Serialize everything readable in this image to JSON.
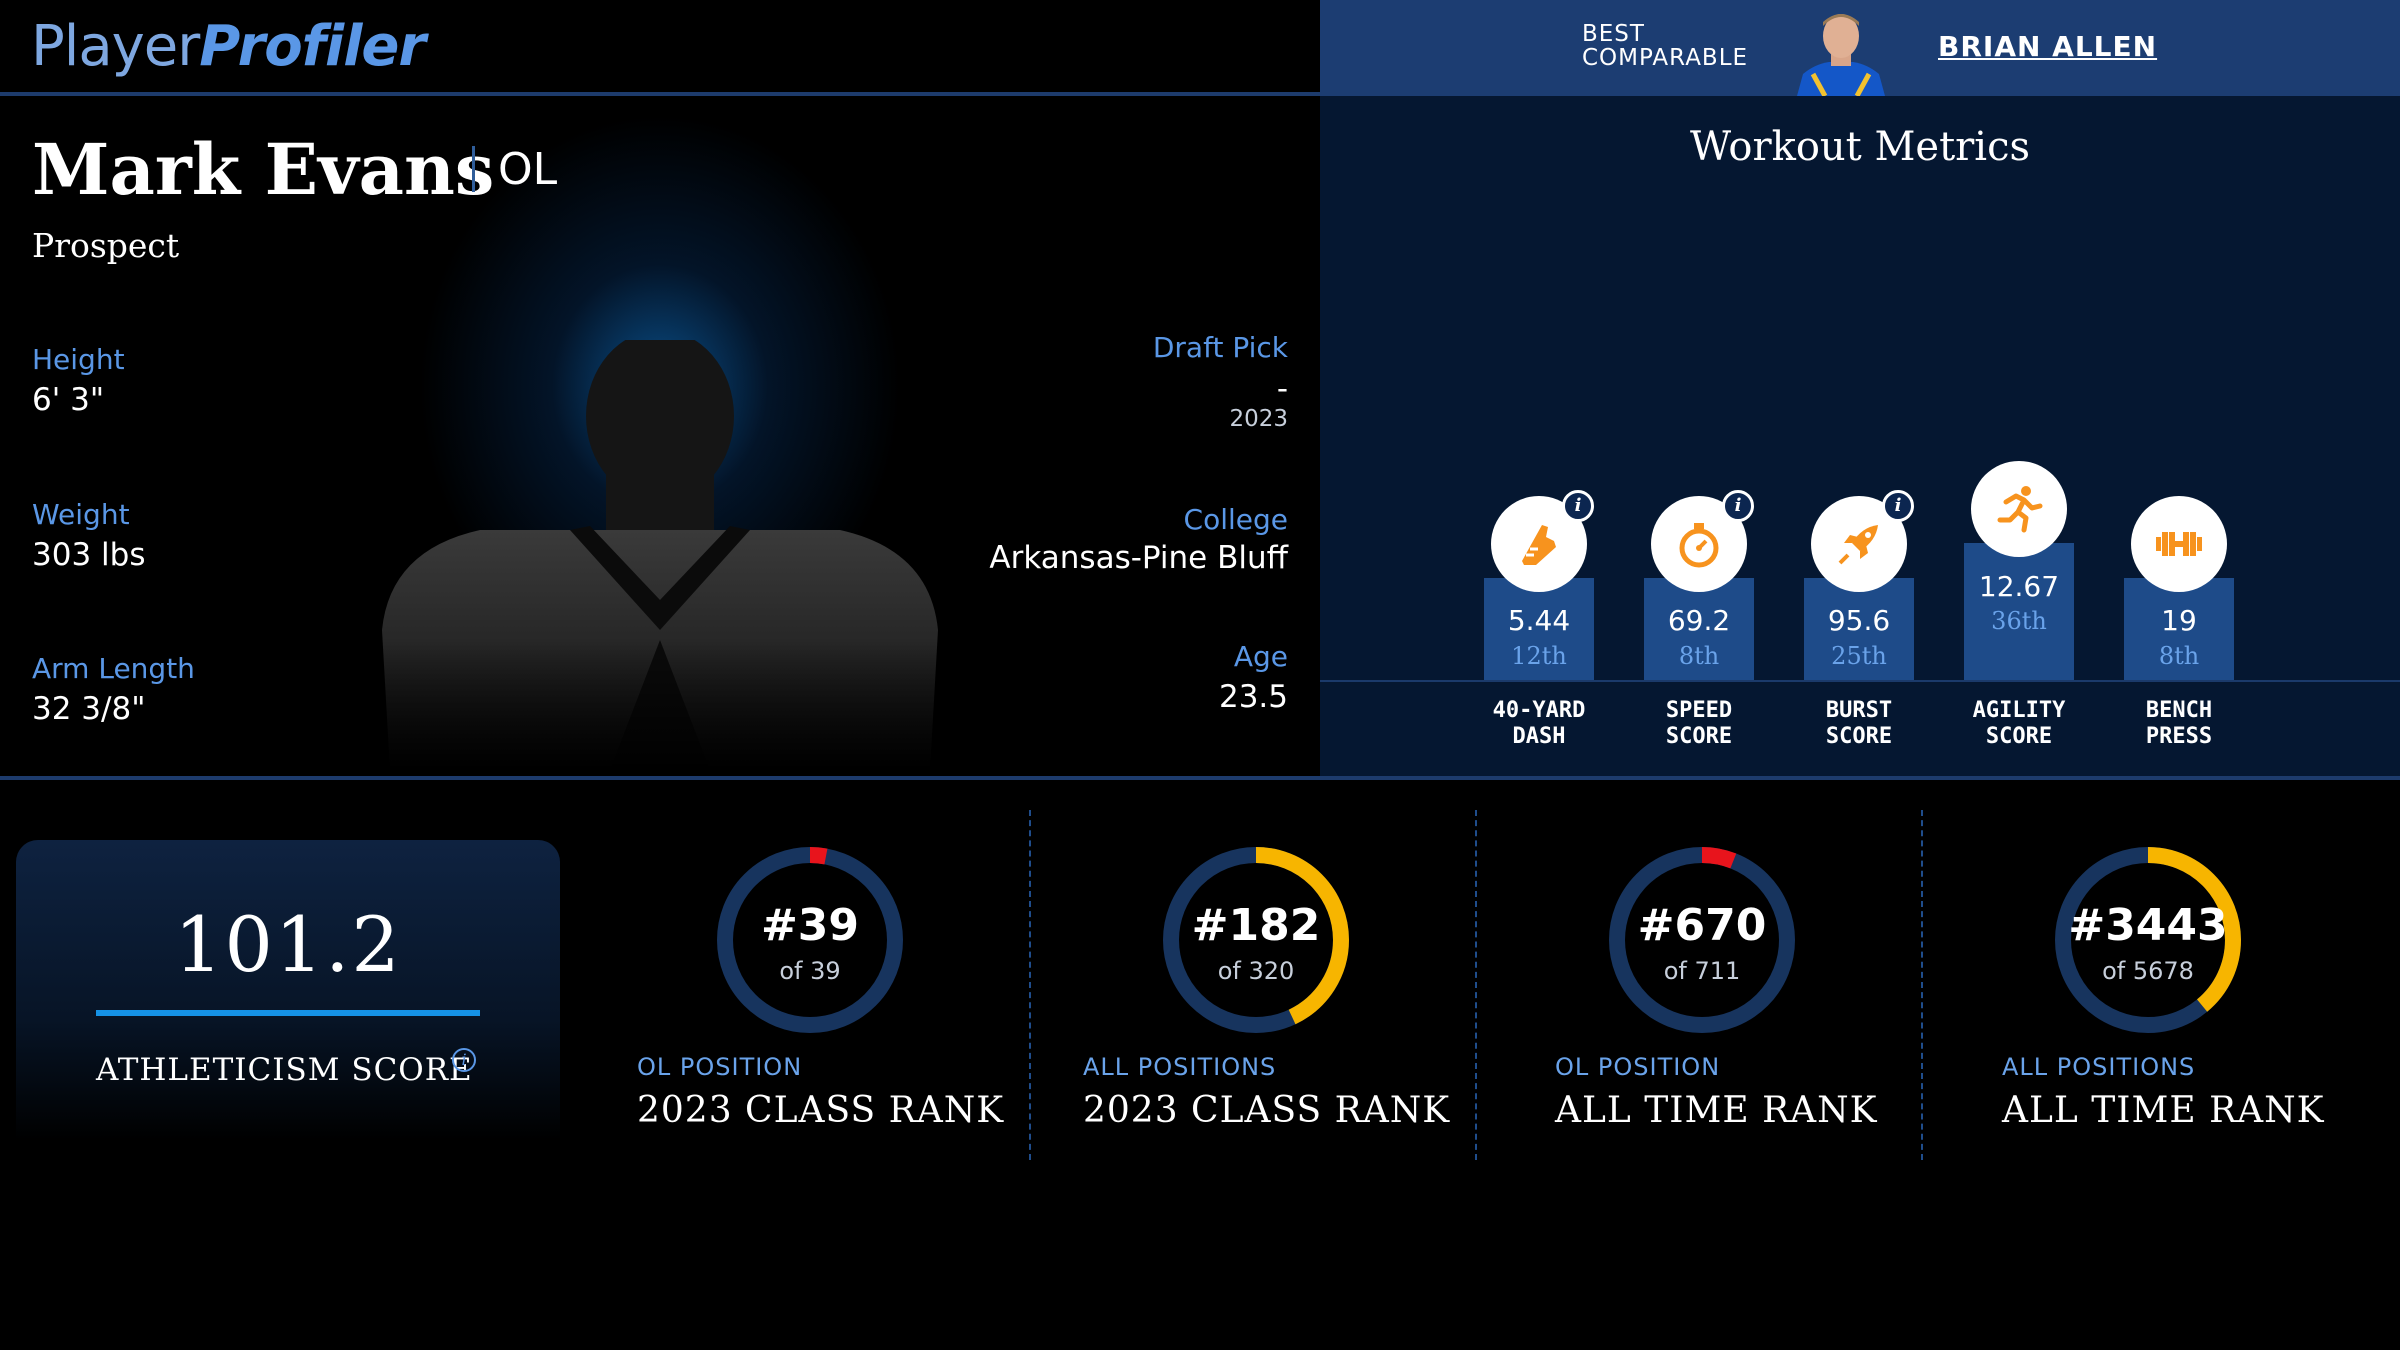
{
  "header": {
    "logo_part1": "Player",
    "logo_part2": "Profiler",
    "best_comparable_line1": "BEST",
    "best_comparable_line2": "COMPARABLE",
    "comparable_name": "BRIAN ALLEN"
  },
  "player": {
    "name": "Mark Evans",
    "position": "OL",
    "status": "Prospect",
    "height_label": "Height",
    "height": "6' 3\"",
    "weight_label": "Weight",
    "weight": "303 lbs",
    "arm_label": "Arm Length",
    "arm": "32 3/8\"",
    "draft_label": "Draft Pick",
    "draft_pick": "-",
    "draft_year": "2023",
    "college_label": "College",
    "college": "Arkansas-Pine Bluff",
    "age_label": "Age",
    "age": "23.5"
  },
  "workout": {
    "title": "Workout Metrics",
    "metrics": [
      {
        "label1": "40-YARD",
        "label2": "DASH",
        "value": "5.44",
        "percentile": "12th",
        "icon": "shoe-icon",
        "has_info": true
      },
      {
        "label1": "SPEED",
        "label2": "SCORE",
        "value": "69.2",
        "percentile": "8th",
        "icon": "stopwatch-icon",
        "has_info": true
      },
      {
        "label1": "BURST",
        "label2": "SCORE",
        "value": "95.6",
        "percentile": "25th",
        "icon": "rocket-icon",
        "has_info": true
      },
      {
        "label1": "AGILITY",
        "label2": "SCORE",
        "value": "12.67",
        "percentile": "36th",
        "icon": "runner-icon",
        "has_info": false
      },
      {
        "label1": "BENCH",
        "label2": "PRESS",
        "value": "19",
        "percentile": "8th",
        "icon": "dumbbell-icon",
        "has_info": false
      }
    ]
  },
  "athleticism": {
    "score": "101.2",
    "label": "ATHLETICISM SCORE"
  },
  "ranks": [
    {
      "rank": "#39",
      "of": "of 39",
      "sub": "OL POSITION",
      "title": "2023 CLASS RANK",
      "fill_fraction": 0.03,
      "color": "#e8141c"
    },
    {
      "rank": "#182",
      "of": "of 320",
      "sub": "ALL POSITIONS",
      "title": "2023 CLASS RANK",
      "fill_fraction": 0.43,
      "color": "#f7b500"
    },
    {
      "rank": "#670",
      "of": "of 711",
      "sub": "OL POSITION",
      "title": "ALL TIME RANK",
      "fill_fraction": 0.06,
      "color": "#e8141c"
    },
    {
      "rank": "#3443",
      "of": "of 5678",
      "sub": "ALL POSITIONS",
      "title": "ALL TIME RANK",
      "fill_fraction": 0.39,
      "color": "#f7b500"
    }
  ],
  "colors": {
    "accent_blue": "#5a97e6",
    "metric_orange": "#f7931e",
    "ring_track": "#17345e"
  }
}
